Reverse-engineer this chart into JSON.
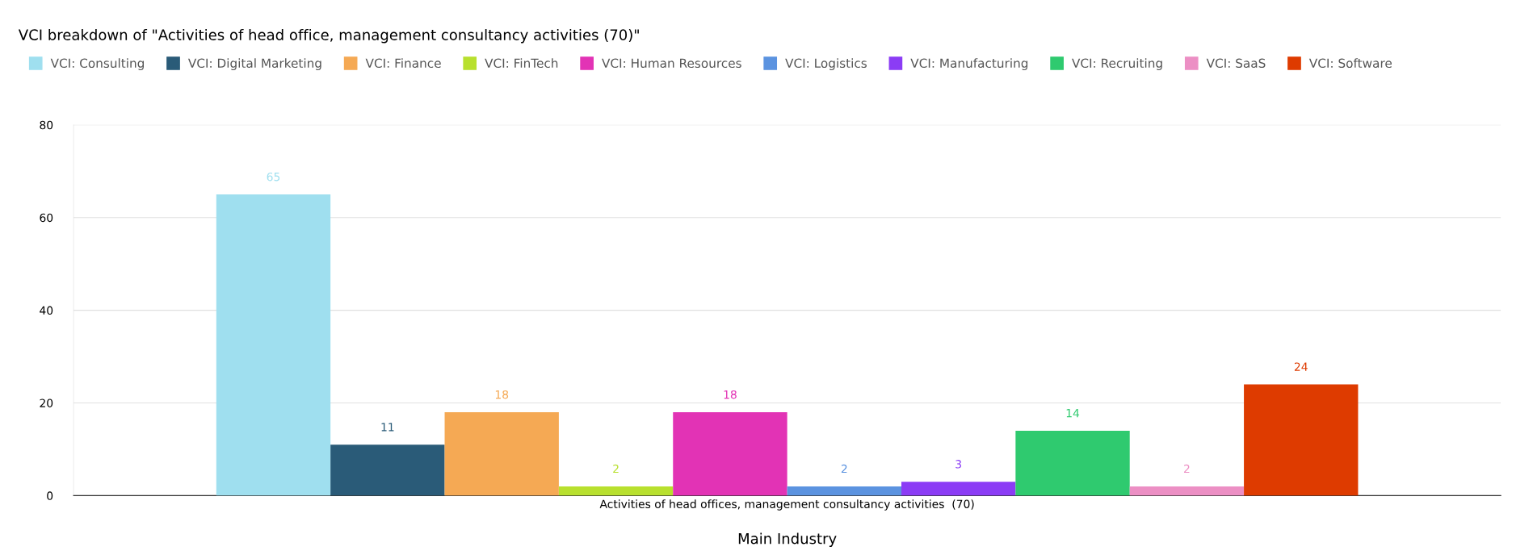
{
  "chart_data": {
    "type": "bar",
    "title": "VCI breakdown of \"Activities of head office, management consultancy activities (70)\"",
    "xlabel": "Main Industry",
    "categories": [
      "Activities of head offices, management consultancy activities  (70)"
    ],
    "series": [
      {
        "name": "VCI: Consulting",
        "color": "#9fdfef",
        "values": [
          65
        ]
      },
      {
        "name": "VCI: Digital Marketing",
        "color": "#2a5b78",
        "values": [
          11
        ]
      },
      {
        "name": "VCI: Finance",
        "color": "#f5a954",
        "values": [
          18
        ]
      },
      {
        "name": "VCI: FinTech",
        "color": "#b8e02e",
        "values": [
          2
        ]
      },
      {
        "name": "VCI: Human Resources",
        "color": "#e233b5",
        "values": [
          18
        ]
      },
      {
        "name": "VCI: Logistics",
        "color": "#5b93e0",
        "values": [
          2
        ]
      },
      {
        "name": "VCI: Manufacturing",
        "color": "#8b3cf5",
        "values": [
          3
        ]
      },
      {
        "name": "VCI: Recruiting",
        "color": "#2fca6f",
        "values": [
          14
        ]
      },
      {
        "name": "VCI: SaaS",
        "color": "#ec8fc4",
        "values": [
          2
        ]
      },
      {
        "name": "VCI: Software",
        "color": "#de3b00",
        "values": [
          24
        ]
      }
    ],
    "ylim": [
      0,
      80
    ],
    "yticks": [
      0,
      20,
      40,
      60,
      80
    ],
    "grid": "y",
    "legend": "top left",
    "data_labels": true
  }
}
